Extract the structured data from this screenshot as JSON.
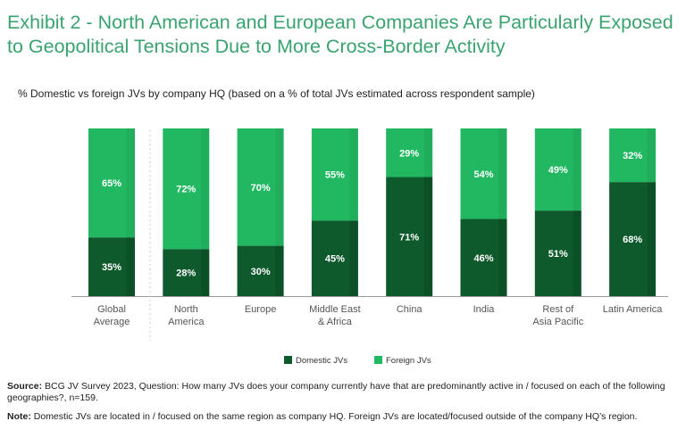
{
  "title": "Exhibit 2 - North American and European Companies Are Particularly Exposed to Geopolitical Tensions Due to More Cross-Border Activity",
  "subtitle": "% Domestic vs foreign JVs by company HQ (based on a % of total JVs estimated across respondent sample)",
  "source_label": "Source:",
  "source_text": "BCG JV Survey 2023, Question: How many JVs does your company currently have that are predominantly active in / focused on each of the following geographies?, n=159.",
  "note_label": "Note:",
  "note_text": "Domestic JVs are located in / focused on the same region as company HQ. Foreign JVs are located/focused outside of the company HQ’s region.",
  "colors": {
    "domestic": "#0e5a2c",
    "foreign": "#22b862",
    "title": "#3aa36f"
  },
  "chart_data": {
    "type": "bar",
    "stacked": true,
    "categories": [
      [
        "Global",
        "Average"
      ],
      [
        "North",
        "America"
      ],
      [
        "Europe"
      ],
      [
        "Middle East",
        "& Africa"
      ],
      [
        "China"
      ],
      [
        "India"
      ],
      [
        "Rest of",
        "Asia Pacific"
      ],
      [
        "Latin America"
      ]
    ],
    "series": [
      {
        "name": "Domestic JVs",
        "values": [
          35,
          28,
          30,
          45,
          71,
          46,
          51,
          68
        ]
      },
      {
        "name": "Foreign JVs",
        "values": [
          65,
          72,
          70,
          55,
          29,
          54,
          49,
          32
        ]
      }
    ],
    "value_suffix": "%",
    "ylim": [
      0,
      100
    ],
    "legend": "bottom-center"
  }
}
